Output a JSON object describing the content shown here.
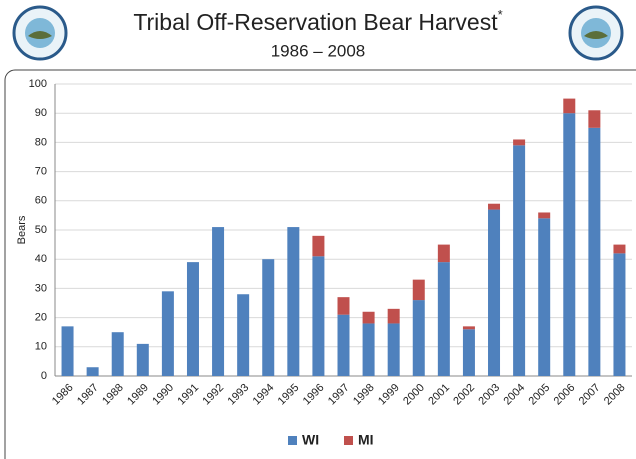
{
  "chart_data": {
    "type": "stacked_bar",
    "title": "Tribal Off-Reservation Bear Harvest",
    "title_mark": "*",
    "subtitle": "1986 – 2008",
    "y_label": "Bears",
    "categories": [
      "1986",
      "1987",
      "1988",
      "1989",
      "1990",
      "1991",
      "1992",
      "1993",
      "1994",
      "1995",
      "1996",
      "1997",
      "1998",
      "1999",
      "2000",
      "2001",
      "2002",
      "2003",
      "2004",
      "2005",
      "2006",
      "2007",
      "2008"
    ],
    "series": [
      {
        "name": "WI",
        "color": "#4f81bd",
        "values": [
          17,
          3,
          15,
          11,
          29,
          39,
          51,
          28,
          40,
          51,
          41,
          21,
          18,
          18,
          26,
          39,
          16,
          57,
          79,
          54,
          90,
          85,
          42
        ]
      },
      {
        "name": "MI",
        "color": "#c0504d",
        "values": [
          0,
          0,
          0,
          0,
          0,
          0,
          0,
          0,
          0,
          0,
          7,
          6,
          4,
          5,
          7,
          6,
          1,
          2,
          2,
          2,
          5,
          6,
          3
        ]
      }
    ],
    "ylim": [
      0,
      100
    ],
    "yticks": [
      0,
      10,
      20,
      30,
      40,
      50,
      60,
      70,
      80,
      90,
      100
    ],
    "grid": true
  }
}
